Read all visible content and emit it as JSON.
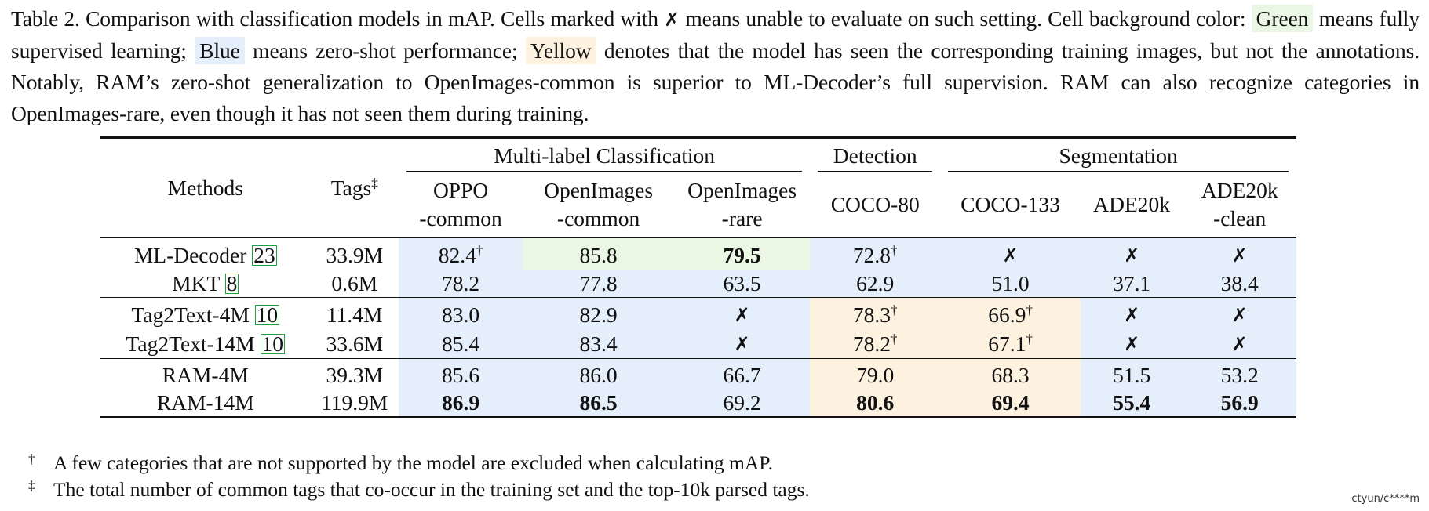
{
  "caption": {
    "part1": "Table 2. Comparison with classification models in mAP. Cells marked with ",
    "cross": "✗",
    "part2": " means unable to evaluate on such setting. Cell background color: ",
    "green_word": "Green",
    "part3": " means fully supervised learning; ",
    "blue_word": "Blue",
    "part4": " means zero-shot performance; ",
    "yellow_word": "Yellow",
    "part5": " denotes that the model has seen the corresponding training images, but not the annotations. Notably, RAM’s zero-shot generalization to OpenImages-common is superior to ML-Decoder’s full supervision. RAM can also recognize categories in OpenImages-rare, even though it has not seen them during training."
  },
  "colors": {
    "green": "#eaf7e4",
    "blue": "#e5eefb",
    "yellow": "#fdf1e0",
    "ref_box": "#22a035"
  },
  "table": {
    "header": {
      "methods": "Methods",
      "tags": "Tags",
      "tags_mark": "‡",
      "group_mlc": "Multi-label Classification",
      "group_det": "Detection",
      "group_seg": "Segmentation",
      "cols": [
        [
          "OPPO",
          "-common"
        ],
        [
          "OpenImages",
          "-common"
        ],
        [
          "OpenImages",
          "-rare"
        ],
        [
          "COCO-80"
        ],
        [
          "COCO-133"
        ],
        [
          "ADE20k"
        ],
        [
          "ADE20k",
          "-clean"
        ]
      ]
    },
    "groups": [
      {
        "rows": [
          {
            "name": "ML-Decoder ",
            "ref": "23",
            "tags": "33.9M",
            "cells": [
              {
                "v": "82.4",
                "sup": "†",
                "bg": "blue"
              },
              {
                "v": "85.8",
                "bg": "green"
              },
              {
                "v": "79.5",
                "bold": true,
                "bg": "green"
              },
              {
                "v": "72.8",
                "sup": "†",
                "bg": "blue"
              },
              {
                "v": "✗",
                "cross": true,
                "bg": "blue"
              },
              {
                "v": "✗",
                "cross": true,
                "bg": "blue"
              },
              {
                "v": "✗",
                "cross": true,
                "bg": "blue"
              }
            ]
          },
          {
            "name": "MKT ",
            "ref": "8",
            "tags": "0.6M",
            "cells": [
              {
                "v": "78.2",
                "bg": "blue"
              },
              {
                "v": "77.8",
                "bg": "blue"
              },
              {
                "v": "63.5",
                "bg": "blue"
              },
              {
                "v": "62.9",
                "bg": "blue"
              },
              {
                "v": "51.0",
                "bg": "blue"
              },
              {
                "v": "37.1",
                "bg": "blue"
              },
              {
                "v": "38.4",
                "bg": "blue"
              }
            ]
          }
        ]
      },
      {
        "rows": [
          {
            "name": "Tag2Text-4M ",
            "ref": "10",
            "tags": "11.4M",
            "cells": [
              {
                "v": "83.0",
                "bg": "blue"
              },
              {
                "v": "82.9",
                "bg": "blue"
              },
              {
                "v": "✗",
                "cross": true,
                "bg": "blue"
              },
              {
                "v": "78.3",
                "sup": "†",
                "bg": "yellow"
              },
              {
                "v": "66.9",
                "sup": "†",
                "bg": "yellow"
              },
              {
                "v": "✗",
                "cross": true,
                "bg": "blue"
              },
              {
                "v": "✗",
                "cross": true,
                "bg": "blue"
              }
            ]
          },
          {
            "name": "Tag2Text-14M ",
            "ref": "10",
            "tags": "33.6M",
            "cells": [
              {
                "v": "85.4",
                "bg": "blue"
              },
              {
                "v": "83.4",
                "bg": "blue"
              },
              {
                "v": "✗",
                "cross": true,
                "bg": "blue"
              },
              {
                "v": "78.2",
                "sup": "†",
                "bg": "yellow"
              },
              {
                "v": "67.1",
                "sup": "†",
                "bg": "yellow"
              },
              {
                "v": "✗",
                "cross": true,
                "bg": "blue"
              },
              {
                "v": "✗",
                "cross": true,
                "bg": "blue"
              }
            ]
          }
        ]
      },
      {
        "rows": [
          {
            "name": "RAM-4M",
            "ref": "",
            "tags": "39.3M",
            "cells": [
              {
                "v": "85.6",
                "bg": "blue"
              },
              {
                "v": "86.0",
                "bg": "blue"
              },
              {
                "v": "66.7",
                "bg": "blue"
              },
              {
                "v": "79.0",
                "bg": "yellow"
              },
              {
                "v": "68.3",
                "bg": "yellow"
              },
              {
                "v": "51.5",
                "bg": "blue"
              },
              {
                "v": "53.2",
                "bg": "blue"
              }
            ]
          },
          {
            "name": "RAM-14M",
            "ref": "",
            "tags": "119.9M",
            "cells": [
              {
                "v": "86.9",
                "bold": true,
                "bg": "blue"
              },
              {
                "v": "86.5",
                "bold": true,
                "bg": "blue"
              },
              {
                "v": "69.2",
                "bg": "blue"
              },
              {
                "v": "80.6",
                "bold": true,
                "bg": "yellow"
              },
              {
                "v": "69.4",
                "bold": true,
                "bg": "yellow"
              },
              {
                "v": "55.4",
                "bold": true,
                "bg": "blue"
              },
              {
                "v": "56.9",
                "bold": true,
                "bg": "blue"
              }
            ]
          }
        ]
      }
    ]
  },
  "footnotes": [
    {
      "mark": "†",
      "text": "A few categories that are not supported by the model are excluded when calculating mAP."
    },
    {
      "mark": "‡",
      "text": "The total number of common tags that co-occur in the training set and the top-10k parsed tags."
    }
  ],
  "watermark": "ctyun/c****m"
}
